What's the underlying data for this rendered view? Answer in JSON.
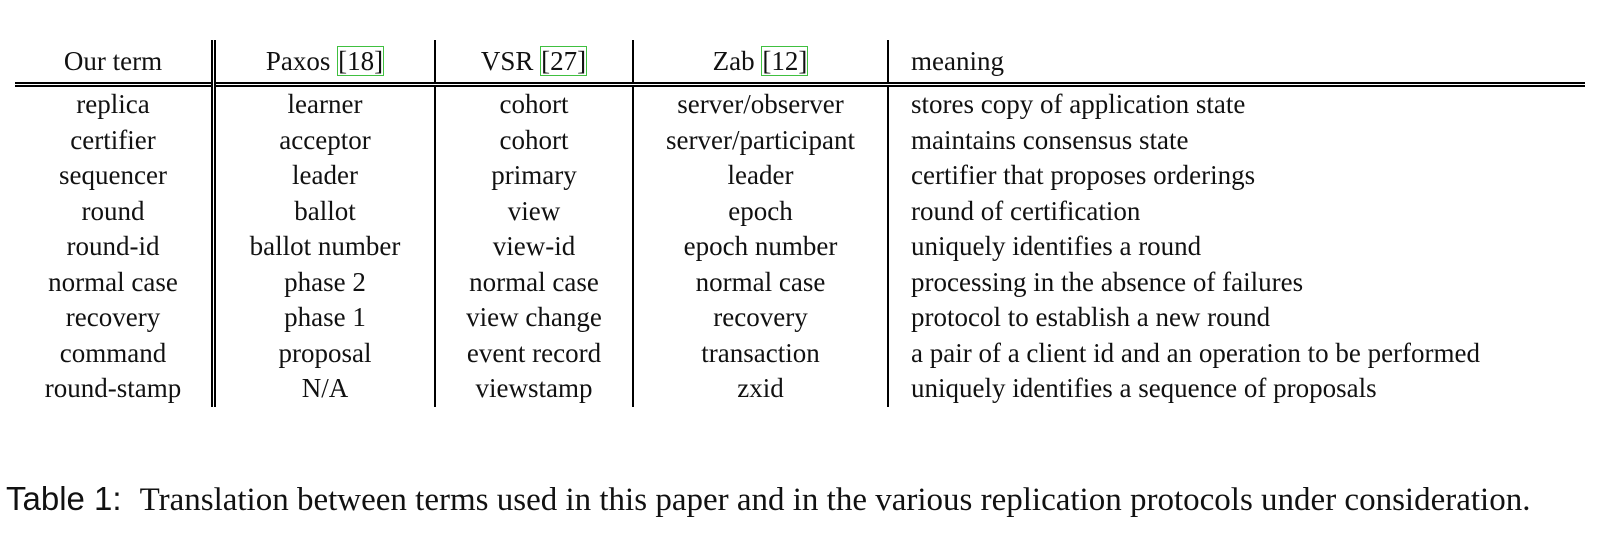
{
  "table": {
    "headers": [
      {
        "name": "Our term",
        "cite": ""
      },
      {
        "name": "Paxos ",
        "cite": "[18]"
      },
      {
        "name": "VSR ",
        "cite": "[27]"
      },
      {
        "name": "Zab ",
        "cite": "[12]"
      },
      {
        "name": "meaning",
        "cite": ""
      }
    ],
    "rows": [
      [
        "replica",
        "learner",
        "cohort",
        "server/observer",
        "stores copy of application state"
      ],
      [
        "certifier",
        "acceptor",
        "cohort",
        "server/participant",
        "maintains consensus state"
      ],
      [
        "sequencer",
        "leader",
        "primary",
        "leader",
        "certifier that proposes orderings"
      ],
      [
        "round",
        "ballot",
        "view",
        "epoch",
        "round of certification"
      ],
      [
        "round-id",
        "ballot number",
        "view-id",
        "epoch number",
        "uniquely identifies a round"
      ],
      [
        "normal case",
        "phase 2",
        "normal case",
        "normal case",
        "processing in the absence of failures"
      ],
      [
        "recovery",
        "phase 1",
        "view change",
        "recovery",
        "protocol to establish a new round"
      ],
      [
        "command",
        "proposal",
        "event record",
        "transaction",
        "a pair of a client id and an operation to be performed"
      ],
      [
        "round-stamp",
        "N/A",
        "viewstamp",
        "zxid",
        "uniquely identifies a sequence of proposals"
      ]
    ]
  },
  "caption": {
    "label": "Table 1:",
    "text": "Translation between terms used in this paper and in the various replication protocols under consideration."
  },
  "colors": {
    "citation_box": "#40c040",
    "rule": "#000000"
  }
}
